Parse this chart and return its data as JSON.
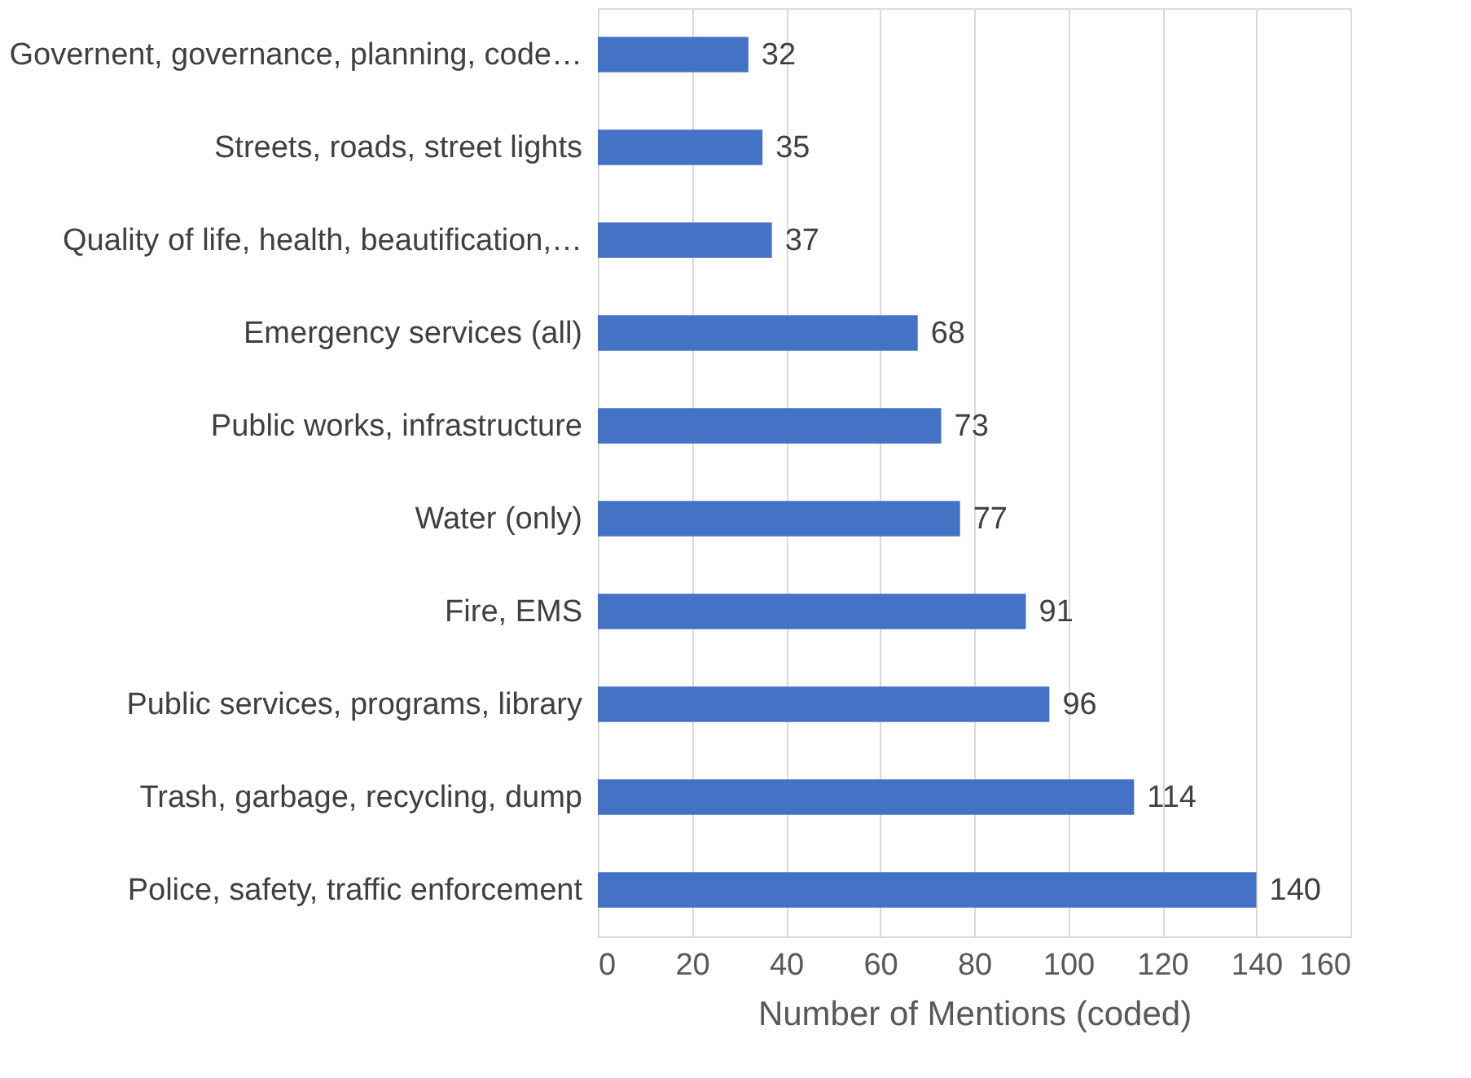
{
  "chart_data": {
    "type": "bar",
    "orientation": "horizontal",
    "xlabel": "Number of Mentions (coded)",
    "categories": [
      "Governent, governance, planning, code…",
      "Streets, roads, street lights",
      "Quality of life, health, beautification,…",
      "Emergency services (all)",
      "Public works, infrastructure",
      "Water (only)",
      "Fire, EMS",
      "Public services, programs, library",
      "Trash, garbage, recycling, dump",
      "Police, safety, traffic enforcement"
    ],
    "values": [
      32,
      35,
      37,
      68,
      73,
      77,
      91,
      96,
      114,
      140
    ],
    "color": "#4472c4",
    "xlim": [
      0,
      160
    ],
    "xticks": [
      0,
      20,
      40,
      60,
      80,
      100,
      120,
      140,
      160
    ],
    "grid": "x",
    "data_labels": true
  }
}
